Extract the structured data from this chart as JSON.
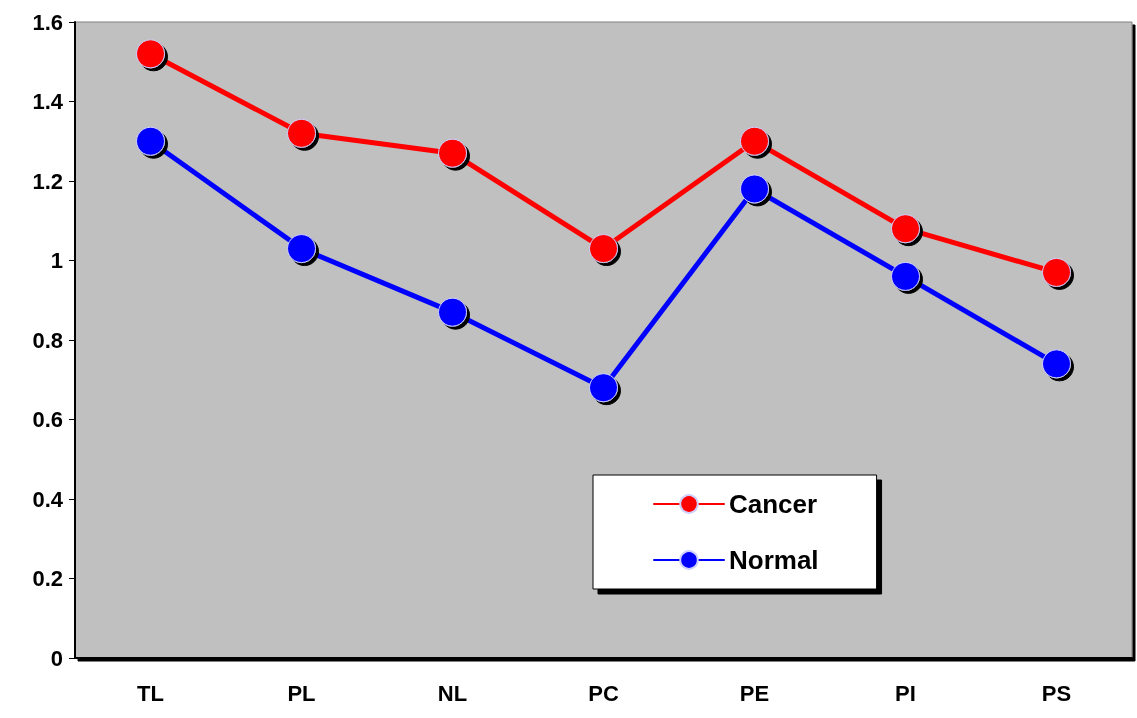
{
  "chart_data": {
    "type": "line",
    "categories": [
      "TL",
      "PL",
      "NL",
      "PC",
      "PE",
      "PI",
      "PS"
    ],
    "series": [
      {
        "name": "Cancer",
        "color": "#ff0000",
        "values": [
          1.52,
          1.32,
          1.27,
          1.03,
          1.3,
          1.08,
          0.97
        ]
      },
      {
        "name": "Normal",
        "color": "#0000ff",
        "values": [
          1.3,
          1.03,
          0.87,
          0.68,
          1.18,
          0.96,
          0.74
        ]
      }
    ],
    "ylim": [
      0,
      1.6
    ],
    "yticks": [
      0,
      0.2,
      0.4,
      0.6,
      0.8,
      1,
      1.2,
      1.4,
      1.6
    ],
    "grid": false,
    "legend": "bottom right",
    "marker": "circle",
    "line_style": "solid"
  }
}
